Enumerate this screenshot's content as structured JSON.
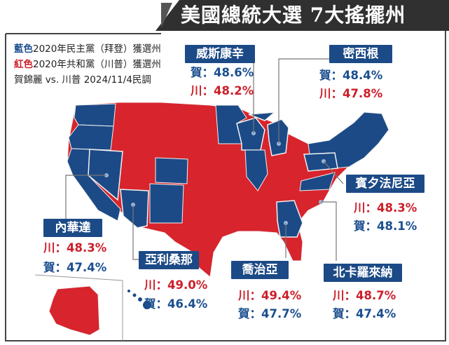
{
  "title": "美國總統大選  7大搖擺州",
  "legend": {
    "blue_word": "藍色",
    "blue_desc": "2020年民主黨（拜登）獲選州",
    "red_word": "紅色",
    "red_desc": "2020年共和黨（川普）獲選州",
    "poll_note": "賀錦麗 vs. 川普  2024/11/4民調"
  },
  "colors": {
    "democrat": "#1c4a86",
    "republican": "#d7242d",
    "banner": "#303030",
    "label_bg": "#1c4a86"
  },
  "states": [
    {
      "id": "wisconsin",
      "name": "威斯康辛",
      "first": "賀：48.6%",
      "first_party": "blue",
      "second": "川：48.2%",
      "second_party": "red"
    },
    {
      "id": "michigan",
      "name": "密西根",
      "first": "賀：48.4%",
      "first_party": "blue",
      "second": "川：47.8%",
      "second_party": "red"
    },
    {
      "id": "pennsylvania",
      "name": "賓夕法尼亞",
      "first": "川：48.3%",
      "first_party": "red",
      "second": "賀：48.1%",
      "second_party": "blue"
    },
    {
      "id": "nevada",
      "name": "內華達",
      "first": "川：48.3%",
      "first_party": "red",
      "second": "賀：47.4%",
      "second_party": "blue"
    },
    {
      "id": "arizona",
      "name": "亞利桑那",
      "first": "川：49.0%",
      "first_party": "red",
      "second": "賀：46.4%",
      "second_party": "blue"
    },
    {
      "id": "georgia",
      "name": "喬治亞",
      "first": "川：49.4%",
      "first_party": "red",
      "second": "賀：47.7%",
      "second_party": "blue"
    },
    {
      "id": "north-carolina",
      "name": "北卡羅來納",
      "first": "川：48.7%",
      "first_party": "red",
      "second": "賀：47.4%",
      "second_party": "blue"
    }
  ]
}
